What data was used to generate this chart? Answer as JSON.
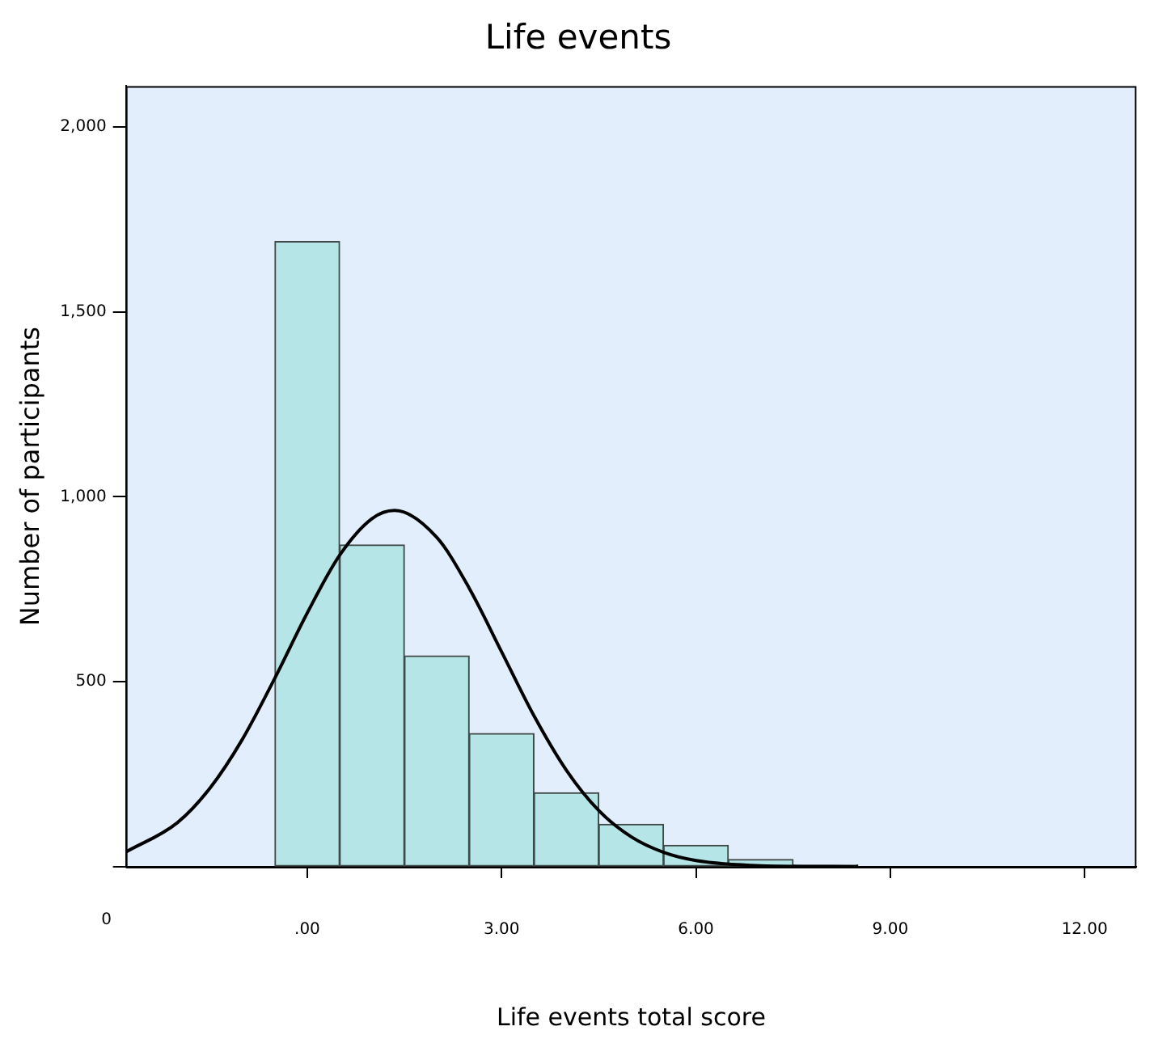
{
  "chart_data": {
    "type": "histogram",
    "title": "Life events",
    "xlabel": "Life events total score",
    "ylabel": "Number of participants",
    "bins": [
      -0.5,
      0.5,
      1.5,
      2.5,
      3.5,
      4.5,
      5.5,
      6.5,
      7.5,
      8.5
    ],
    "values": [
      1690,
      870,
      570,
      360,
      200,
      115,
      58,
      20,
      5
    ],
    "color": "#b5e5e6",
    "series": [
      {
        "type": "line",
        "color": "#000000",
        "x": [
          -2.8,
          -2,
          -1.5,
          -1,
          -0.5,
          0,
          0.5,
          1,
          1.35,
          2,
          2.5,
          3,
          3.5,
          4,
          4.5,
          5,
          5.5,
          6,
          7,
          8.5
        ],
        "values": [
          40,
          120,
          213,
          345,
          510,
          686,
          842,
          941,
          963,
          890,
          753,
          581,
          408,
          261,
          152,
          81,
          39,
          17,
          3,
          0
        ]
      }
    ],
    "xlim": [
      -2.8,
      12.8
    ],
    "xticks": [
      {
        "value": 0,
        "label": ".00"
      },
      {
        "value": 3,
        "label": "3.00"
      },
      {
        "value": 6,
        "label": "6.00"
      },
      {
        "value": 9,
        "label": "9.00"
      },
      {
        "value": 12,
        "label": "12.00"
      }
    ],
    "ylim": [
      0,
      2110
    ],
    "yticks": [
      {
        "value": 0,
        "label": null
      },
      {
        "value": 500,
        "label": "500"
      },
      {
        "value": 1000,
        "label": "1,000"
      },
      {
        "value": 1500,
        "label": "1,500"
      },
      {
        "value": 2000,
        "label": "2,000"
      }
    ],
    "annotations": [
      "0"
    ],
    "grid": false,
    "legend": false
  }
}
